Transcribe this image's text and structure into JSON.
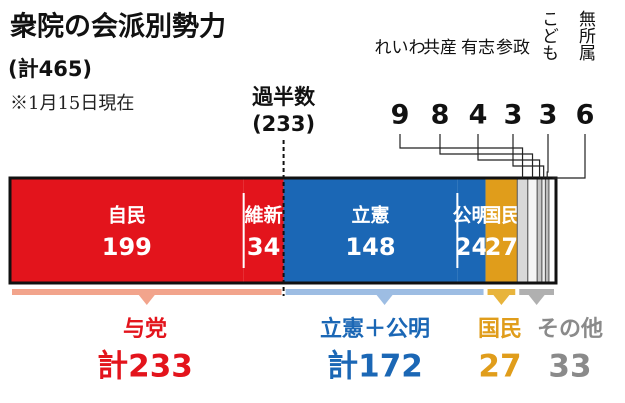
{
  "chart_data": {
    "type": "bar",
    "title": "衆院の会派別勢力",
    "subtitle": "(計465)",
    "note": "※1月15日現在",
    "majority": {
      "label": "過半数",
      "value": 233,
      "value_label": "(233)"
    },
    "series": [
      {
        "name": "自民",
        "color": "#e3141c",
        "values": [
          199
        ]
      },
      {
        "name": "維新",
        "color": "#e3141c",
        "values": [
          34
        ]
      },
      {
        "name": "立憲",
        "color": "#1b67b5",
        "values": [
          148
        ]
      },
      {
        "name": "公明",
        "color": "#1b67b5",
        "values": [
          24
        ]
      },
      {
        "name": "国民",
        "color": "#e09d1b",
        "values": [
          27
        ]
      },
      {
        "name": "れいわ",
        "color": "#d8d8d8",
        "values": [
          9
        ]
      },
      {
        "name": "共産",
        "color": "#f4f4f4",
        "values": [
          8
        ]
      },
      {
        "name": "有志",
        "color": "#c4c4c4",
        "values": [
          4
        ]
      },
      {
        "name": "参政",
        "color": "#eeeeee",
        "values": [
          3
        ]
      },
      {
        "name": "こども",
        "color": "#bdbdbd",
        "values": [
          3
        ]
      },
      {
        "name": "無所属",
        "color": "#ffffff",
        "values": [
          6
        ]
      }
    ],
    "groups": {
      "names": [
        "与党",
        "立憲＋公明",
        "国民",
        "その他"
      ],
      "values": [
        233,
        172,
        27,
        33
      ],
      "value_labels": [
        "計233",
        "計172",
        "27",
        "33"
      ],
      "colors": [
        "#e3141c",
        "#1b67b5",
        "#e09d1b",
        "#8a8a8a"
      ],
      "bracket_colors": [
        "#f2a48c",
        "#9dbde3",
        "#e8b43c",
        "#b0b0b0"
      ]
    }
  }
}
